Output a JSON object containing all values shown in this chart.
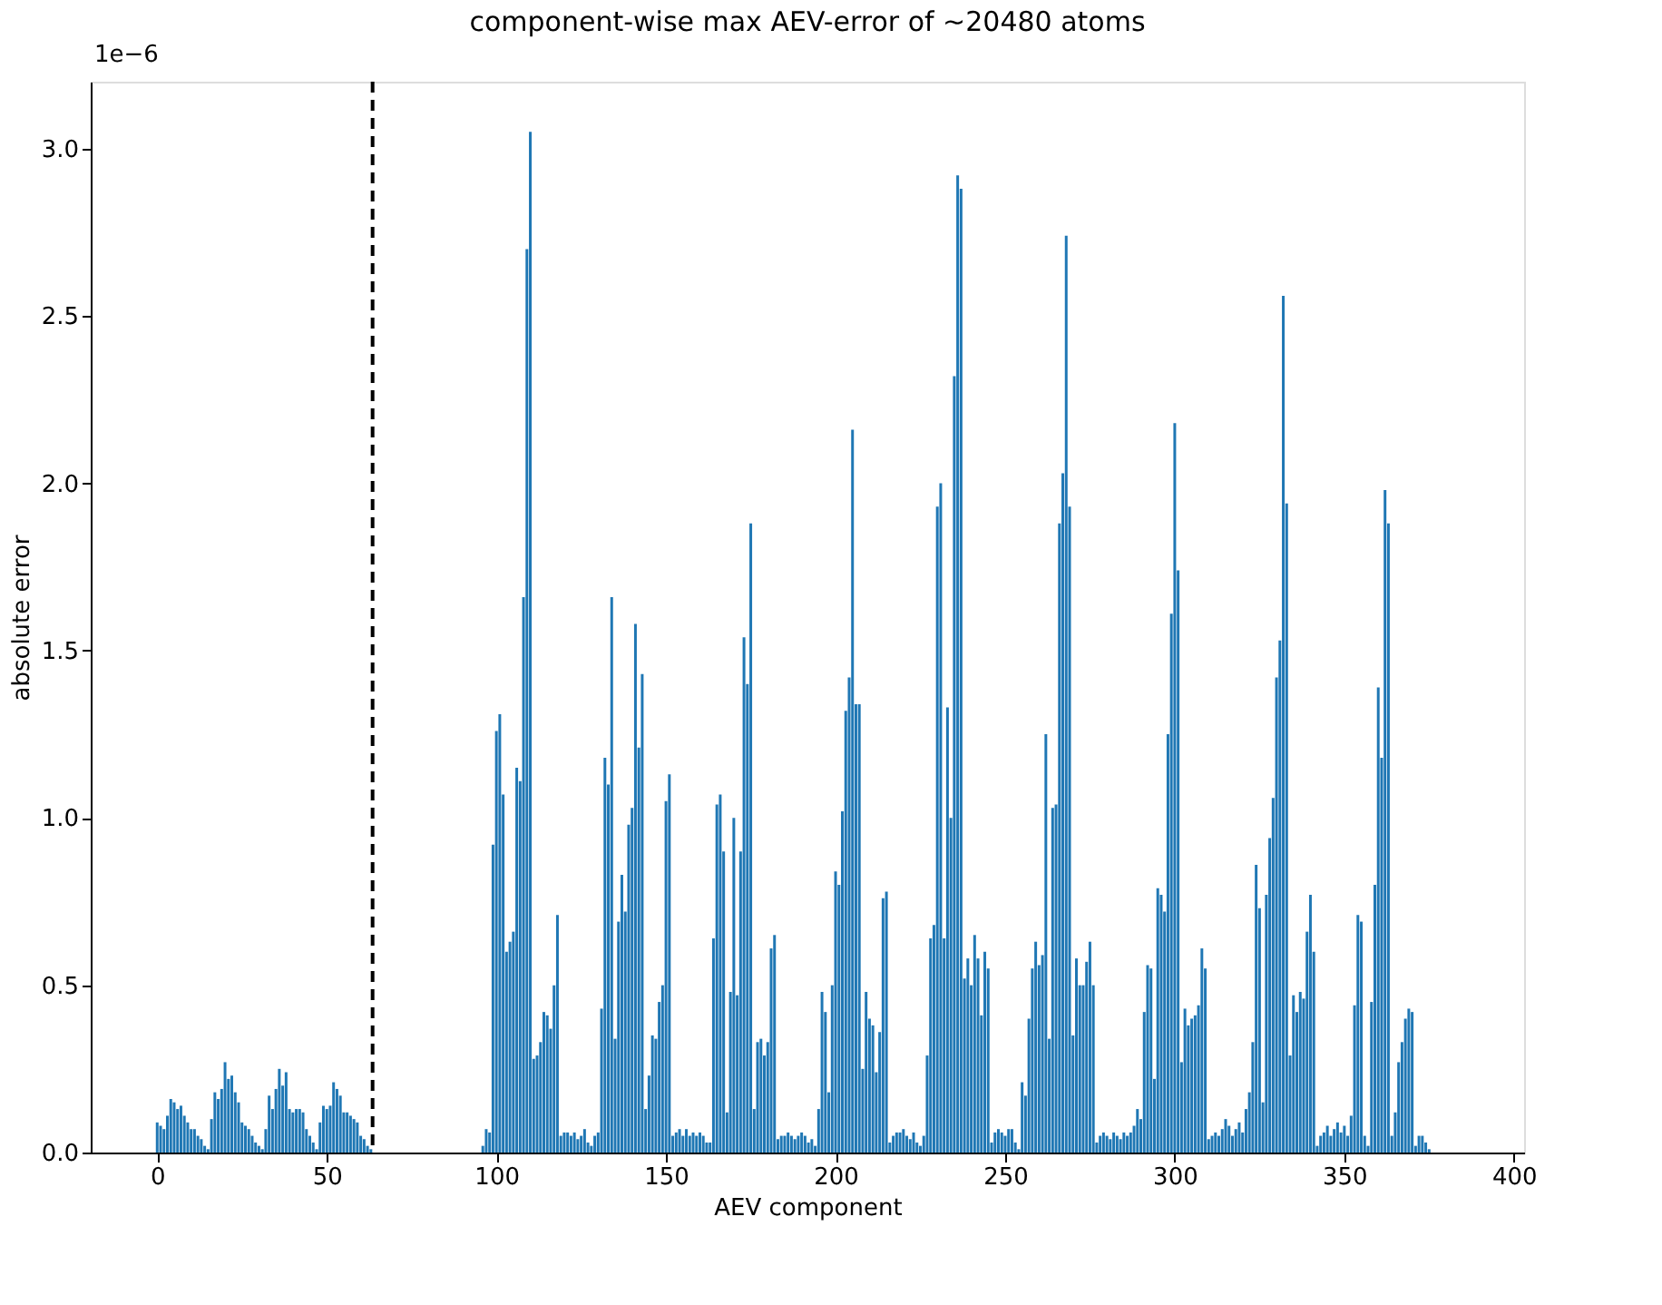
{
  "chart_data": {
    "type": "bar",
    "title": "component-wise max AEV-error of ~20480 atoms",
    "xlabel": "AEV component",
    "ylabel": "absolute error",
    "annotations": [
      "1e−6"
    ],
    "x": [
      0,
      1,
      2,
      3,
      4,
      5,
      6,
      7,
      8,
      9,
      10,
      11,
      12,
      13,
      14,
      15,
      16,
      17,
      18,
      19,
      20,
      21,
      22,
      23,
      24,
      25,
      26,
      27,
      28,
      29,
      30,
      31,
      32,
      33,
      34,
      35,
      36,
      37,
      38,
      39,
      40,
      41,
      42,
      43,
      44,
      45,
      46,
      47,
      48,
      49,
      50,
      51,
      52,
      53,
      54,
      55,
      56,
      57,
      58,
      59,
      60,
      61,
      62,
      63,
      64,
      65,
      66,
      67,
      68,
      69,
      70,
      71,
      72,
      73,
      74,
      75,
      76,
      77,
      78,
      79,
      80,
      81,
      82,
      83,
      84,
      85,
      86,
      87,
      88,
      89,
      90,
      91,
      92,
      93,
      94,
      95,
      96,
      97,
      98,
      99,
      100,
      101,
      102,
      103,
      104,
      105,
      106,
      107,
      108,
      109,
      110,
      111,
      112,
      113,
      114,
      115,
      116,
      117,
      118,
      119,
      120,
      121,
      122,
      123,
      124,
      125,
      126,
      127,
      128,
      129,
      130,
      131,
      132,
      133,
      134,
      135,
      136,
      137,
      138,
      139,
      140,
      141,
      142,
      143,
      144,
      145,
      146,
      147,
      148,
      149,
      150,
      151,
      152,
      153,
      154,
      155,
      156,
      157,
      158,
      159,
      160,
      161,
      162,
      163,
      164,
      165,
      166,
      167,
      168,
      169,
      170,
      171,
      172,
      173,
      174,
      175,
      176,
      177,
      178,
      179,
      180,
      181,
      182,
      183,
      184,
      185,
      186,
      187,
      188,
      189,
      190,
      191,
      192,
      193,
      194,
      195,
      196,
      197,
      198,
      199,
      200,
      201,
      202,
      203,
      204,
      205,
      206,
      207,
      208,
      209,
      210,
      211,
      212,
      213,
      214,
      215,
      216,
      217,
      218,
      219,
      220,
      221,
      222,
      223,
      224,
      225,
      226,
      227,
      228,
      229,
      230,
      231,
      232,
      233,
      234,
      235,
      236,
      237,
      238,
      239,
      240,
      241,
      242,
      243,
      244,
      245,
      246,
      247,
      248,
      249,
      250,
      251,
      252,
      253,
      254,
      255,
      256,
      257,
      258,
      259,
      260,
      261,
      262,
      263,
      264,
      265,
      266,
      267,
      268,
      269,
      270,
      271,
      272,
      273,
      274,
      275,
      276,
      277,
      278,
      279,
      280,
      281,
      282,
      283,
      284,
      285,
      286,
      287,
      288,
      289,
      290,
      291,
      292,
      293,
      294,
      295,
      296,
      297,
      298,
      299,
      300,
      301,
      302,
      303,
      304,
      305,
      306,
      307,
      308,
      309,
      310,
      311,
      312,
      313,
      314,
      315,
      316,
      317,
      318,
      319,
      320,
      321,
      322,
      323,
      324,
      325,
      326,
      327,
      328,
      329,
      330,
      331,
      332,
      333,
      334,
      335,
      336,
      337,
      338,
      339,
      340,
      341,
      342,
      343,
      344,
      345,
      346,
      347,
      348,
      349,
      350,
      351,
      352,
      353,
      354,
      355,
      356,
      357,
      358,
      359,
      360,
      361,
      362,
      363,
      364,
      365,
      366,
      367,
      368,
      369,
      370,
      371,
      372,
      373,
      374,
      375,
      376,
      377,
      378,
      379,
      380,
      381,
      382,
      383
    ],
    "series": [
      {
        "color": "#1f77b4",
        "values": [
          0.09,
          0.08,
          0.07,
          0.11,
          0.16,
          0.15,
          0.13,
          0.14,
          0.11,
          0.09,
          0.07,
          0.07,
          0.05,
          0.04,
          0.02,
          0.01,
          0.1,
          0.18,
          0.16,
          0.19,
          0.27,
          0.22,
          0.23,
          0.18,
          0.15,
          0.09,
          0.08,
          0.07,
          0.05,
          0.03,
          0.02,
          0.01,
          0.07,
          0.17,
          0.13,
          0.19,
          0.25,
          0.2,
          0.24,
          0.13,
          0.12,
          0.13,
          0.13,
          0.12,
          0.07,
          0.05,
          0.03,
          0.01,
          0.09,
          0.14,
          0.13,
          0.14,
          0.21,
          0.19,
          0.17,
          0.12,
          0.12,
          0.11,
          0.1,
          0.09,
          0.05,
          0.04,
          0.02,
          0.01,
          0,
          0,
          0,
          0,
          0,
          0,
          0,
          0,
          0,
          0,
          0,
          0,
          0,
          0,
          0,
          0,
          0,
          0,
          0,
          0,
          0,
          0,
          0,
          0,
          0,
          0,
          0,
          0,
          0,
          0,
          0,
          0,
          0.02,
          0.07,
          0.06,
          0.92,
          1.26,
          1.31,
          1.07,
          0.6,
          0.63,
          0.66,
          1.15,
          1.11,
          1.66,
          2.7,
          3.05,
          0.28,
          0.29,
          0.33,
          0.42,
          0.41,
          0.37,
          0.5,
          0.71,
          0.05,
          0.06,
          0.06,
          0.05,
          0.06,
          0.04,
          0.05,
          0.07,
          0.03,
          0.02,
          0.05,
          0.06,
          0.43,
          1.18,
          1.1,
          1.66,
          0.34,
          0.69,
          0.83,
          0.72,
          0.98,
          1.03,
          1.58,
          1.21,
          1.43,
          0.13,
          0.23,
          0.35,
          0.34,
          0.45,
          0.5,
          1.05,
          1.13,
          0.05,
          0.06,
          0.07,
          0.05,
          0.07,
          0.05,
          0.06,
          0.05,
          0.06,
          0.05,
          0.03,
          0.03,
          0.64,
          1.04,
          1.07,
          0.9,
          0.12,
          0.48,
          1.0,
          0.47,
          0.9,
          1.54,
          1.4,
          1.88,
          0.13,
          0.33,
          0.34,
          0.29,
          0.33,
          0.61,
          0.65,
          0.04,
          0.05,
          0.05,
          0.06,
          0.05,
          0.04,
          0.05,
          0.06,
          0.05,
          0.03,
          0.04,
          0.02,
          0.13,
          0.48,
          0.42,
          0.18,
          0.5,
          0.84,
          0.8,
          1.02,
          1.32,
          1.42,
          2.16,
          1.34,
          1.34,
          0.25,
          0.48,
          0.4,
          0.38,
          0.24,
          0.36,
          0.76,
          0.78,
          0.03,
          0.05,
          0.06,
          0.06,
          0.07,
          0.05,
          0.04,
          0.06,
          0.03,
          0.02,
          0.05,
          0.29,
          0.64,
          0.68,
          1.93,
          2.0,
          0.64,
          1.33,
          1.0,
          2.32,
          2.92,
          2.88,
          0.52,
          0.58,
          0.5,
          0.65,
          0.58,
          0.41,
          0.6,
          0.55,
          0.03,
          0.06,
          0.07,
          0.06,
          0.05,
          0.07,
          0.07,
          0.03,
          0.01,
          0.21,
          0.17,
          0.4,
          0.55,
          0.63,
          0.56,
          0.59,
          1.25,
          0.34,
          1.03,
          1.04,
          1.88,
          2.03,
          2.74,
          1.93,
          0.35,
          0.58,
          0.5,
          0.5,
          0.57,
          0.63,
          0.5,
          0.03,
          0.05,
          0.06,
          0.05,
          0.04,
          0.06,
          0.05,
          0.04,
          0.06,
          0.05,
          0.06,
          0.08,
          0.13,
          0.1,
          0.42,
          0.56,
          0.55,
          0.22,
          0.79,
          0.77,
          0.72,
          1.25,
          1.61,
          2.18,
          1.74,
          0.27,
          0.43,
          0.38,
          0.4,
          0.41,
          0.44,
          0.61,
          0.55,
          0.04,
          0.05,
          0.06,
          0.05,
          0.07,
          0.1,
          0.08,
          0.05,
          0.07,
          0.09,
          0.06,
          0.13,
          0.18,
          0.33,
          0.86,
          0.73,
          0.15,
          0.77,
          0.94,
          1.06,
          1.42,
          1.53,
          2.56,
          1.94,
          0.29,
          0.47,
          0.42,
          0.48,
          0.46,
          0.66,
          0.77,
          0.6,
          0.02,
          0.05,
          0.06,
          0.08,
          0.05,
          0.07,
          0.09,
          0.06,
          0.08,
          0.05,
          0.11,
          0.44,
          0.71,
          0.69,
          0.05,
          0.02,
          0.45,
          0.8,
          1.39,
          1.18,
          1.98,
          1.88,
          0.05,
          0.12,
          0.27,
          0.33,
          0.4,
          0.43,
          0.42,
          0.02,
          0.05,
          0.05,
          0.03,
          0.01,
          0,
          0,
          0,
          0,
          0,
          0,
          0,
          0
        ]
      }
    ],
    "xlim": [
      -19.6,
      403.0
    ],
    "xticks": [
      0,
      50,
      100,
      150,
      200,
      250,
      300,
      350,
      400
    ],
    "ylim": [
      0,
      3.2
    ],
    "yticks": [
      {
        "value": 0,
        "label": "0.0"
      },
      0.5,
      {
        "value": 1,
        "label": "1.0"
      },
      1.5,
      {
        "value": 2,
        "label": "2.0"
      },
      2.5,
      {
        "value": 3,
        "label": "3.0"
      }
    ],
    "ref_lines": [
      {
        "axis": "x",
        "value": 63.5,
        "color": "#000000",
        "line_style": "dashed"
      }
    ],
    "grid": false
  }
}
